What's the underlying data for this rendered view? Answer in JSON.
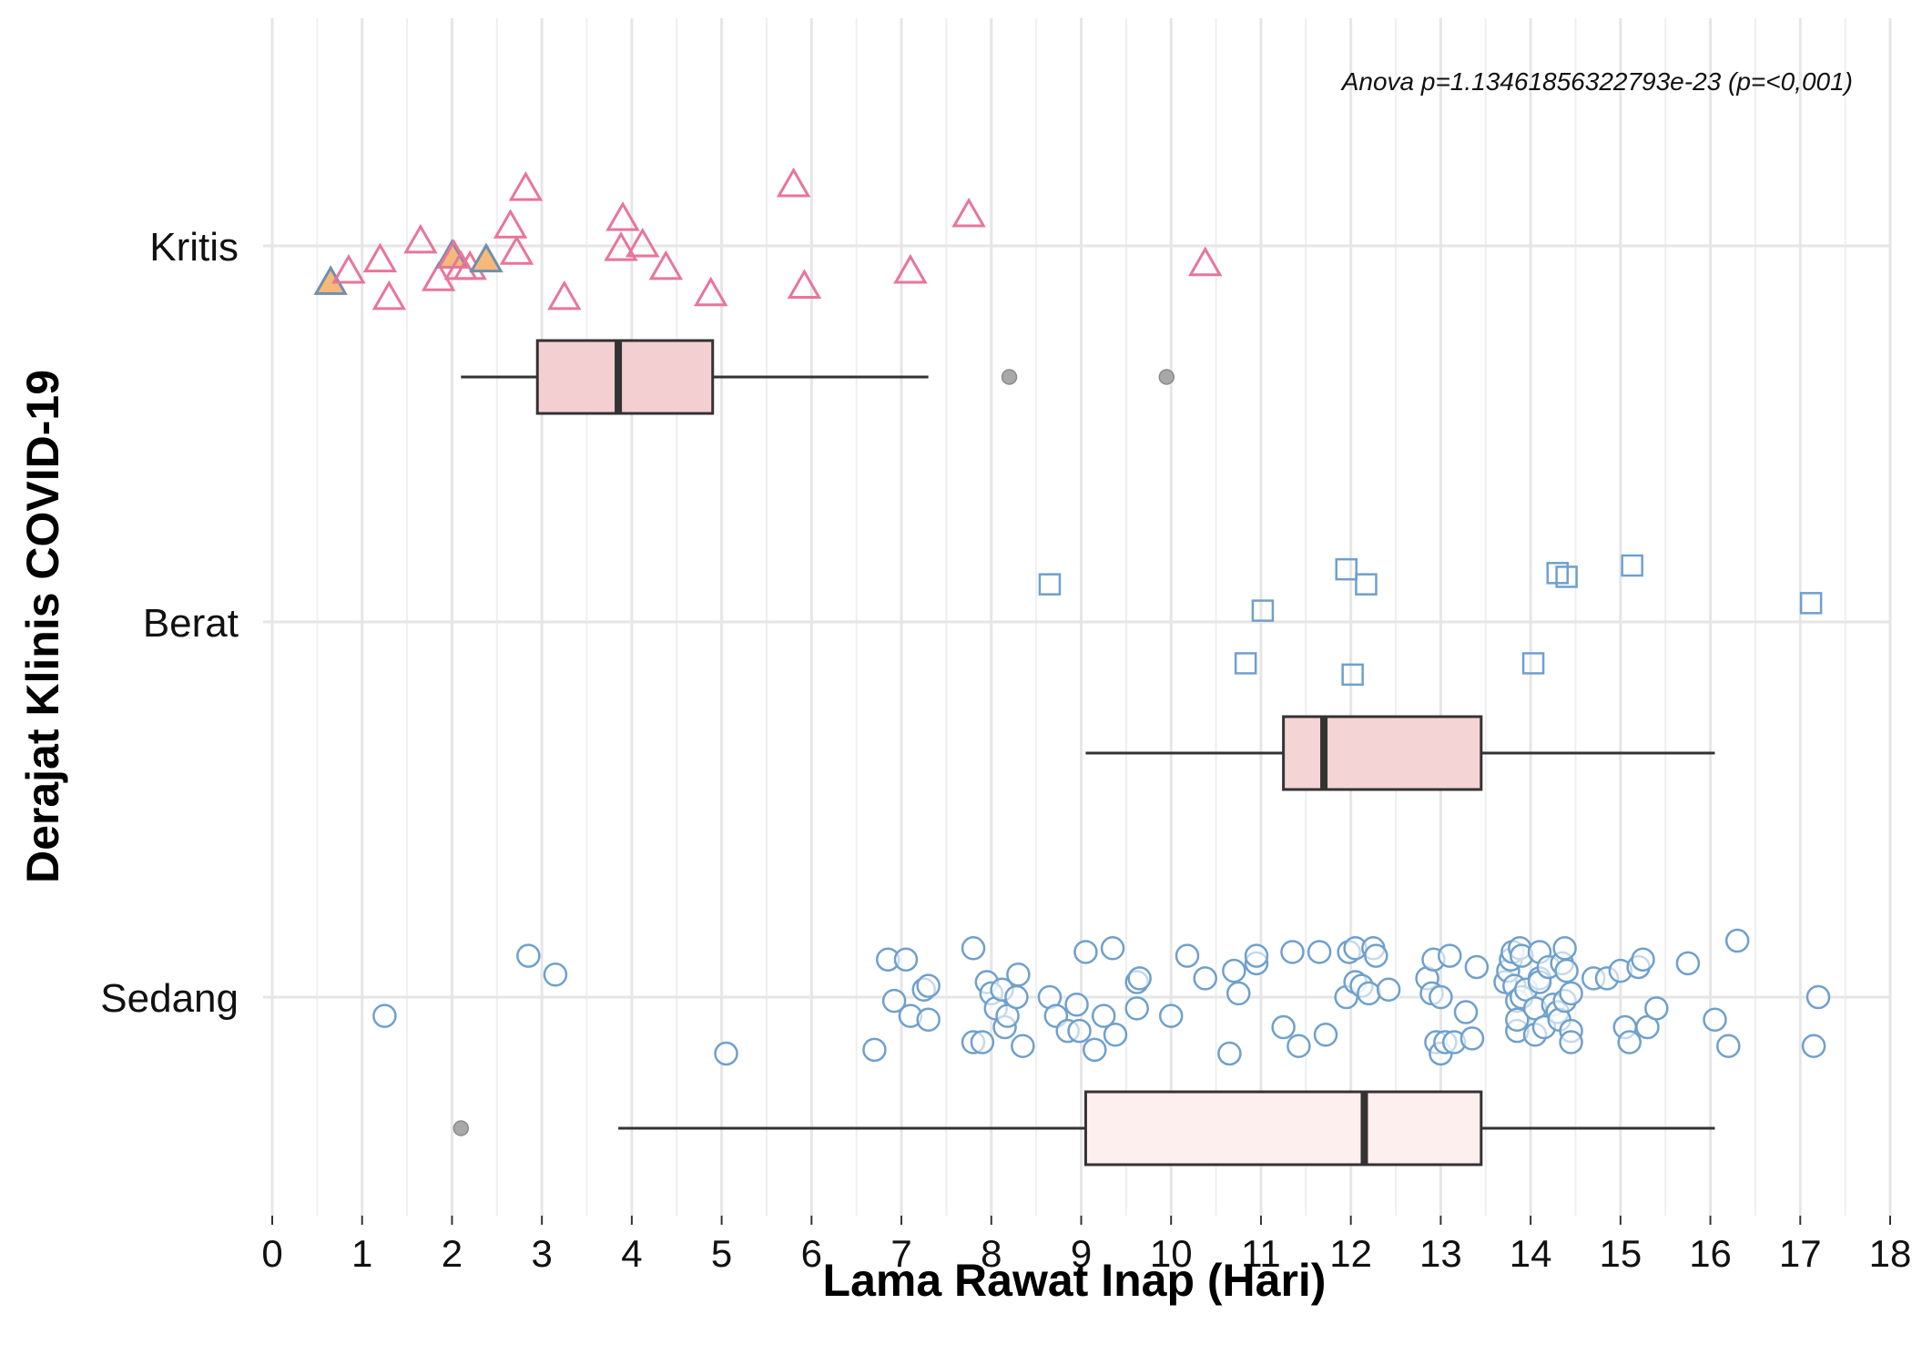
{
  "chart_data": {
    "type": "boxplot-jitter",
    "xlabel": "Lama Rawat Inap (Hari)",
    "ylabel": "Derajat Klinis COVID-19",
    "annotation": "Anova p=1.13461856322793e-23 (p=<0,001)",
    "xlim": [
      0,
      18
    ],
    "x_ticks": [
      0,
      1,
      2,
      3,
      4,
      5,
      6,
      7,
      8,
      9,
      10,
      11,
      12,
      13,
      14,
      15,
      16,
      17,
      18
    ],
    "categories": [
      "Kritis",
      "Berat",
      "Sedang"
    ],
    "grid": true,
    "colors": {
      "kritis_points": "#e8759a",
      "kritis_highlight_fill": "#f6b97a",
      "kritis_highlight_stroke": "#6f8fb0",
      "berat_points": "#6fa0cc",
      "sedang_points": "#6fa0cc",
      "box_stroke": "#333333",
      "box_fill_kritis": "#f4cfd1",
      "box_fill_berat": "#f4d4d4",
      "box_fill_sedang": "#fdefee",
      "outlier": "#a8a8a8",
      "grid_major": "#e6e6e6",
      "grid_minor": "#efefef"
    },
    "series": [
      {
        "category": "Kritis",
        "marker": "triangle",
        "boxplot": {
          "whisker_low": 2.1,
          "q1": 2.95,
          "median": 3.85,
          "q3": 4.9,
          "whisker_high": 7.3,
          "outliers": [
            8.2,
            9.95
          ]
        },
        "points": [
          [
            0.65,
            -0.1,
            true
          ],
          [
            0.85,
            -0.07,
            false
          ],
          [
            1.2,
            -0.04,
            false
          ],
          [
            1.3,
            -0.14,
            false
          ],
          [
            1.65,
            0.01,
            false
          ],
          [
            1.85,
            -0.09,
            false
          ],
          [
            2.0,
            -0.03,
            true
          ],
          [
            2.02,
            -0.03,
            false
          ],
          [
            2.1,
            -0.06,
            false
          ],
          [
            2.2,
            -0.06,
            false
          ],
          [
            2.38,
            -0.04,
            true
          ],
          [
            2.65,
            0.05,
            false
          ],
          [
            2.72,
            -0.02,
            false
          ],
          [
            2.82,
            0.15,
            false
          ],
          [
            3.25,
            -0.14,
            false
          ],
          [
            3.88,
            -0.01,
            false
          ],
          [
            3.9,
            0.07,
            false
          ],
          [
            4.12,
            0.0,
            false
          ],
          [
            4.38,
            -0.06,
            false
          ],
          [
            4.88,
            -0.13,
            false
          ],
          [
            5.8,
            0.16,
            false
          ],
          [
            5.92,
            -0.11,
            false
          ],
          [
            7.1,
            -0.07,
            false
          ],
          [
            7.75,
            0.08,
            false
          ],
          [
            10.38,
            -0.05,
            false
          ]
        ]
      },
      {
        "category": "Berat",
        "marker": "square",
        "boxplot": {
          "whisker_low": 9.05,
          "q1": 11.25,
          "median": 11.7,
          "q3": 13.45,
          "whisker_high": 16.05,
          "outliers": []
        },
        "points": [
          [
            8.65,
            0.1,
            false
          ],
          [
            10.83,
            -0.11,
            false
          ],
          [
            11.02,
            0.03,
            false
          ],
          [
            11.95,
            0.14,
            false
          ],
          [
            12.02,
            -0.14,
            false
          ],
          [
            12.17,
            0.1,
            false
          ],
          [
            14.03,
            -0.11,
            false
          ],
          [
            14.3,
            0.13,
            false
          ],
          [
            14.4,
            0.12,
            false
          ],
          [
            15.13,
            0.15,
            false
          ],
          [
            17.12,
            0.05,
            false
          ]
        ]
      },
      {
        "category": "Sedang",
        "marker": "circle",
        "boxplot": {
          "whisker_low": 3.85,
          "q1": 9.05,
          "median": 12.15,
          "q3": 13.45,
          "whisker_high": 16.05,
          "outliers": [
            2.1
          ]
        },
        "points": [
          [
            1.25,
            -0.05,
            false
          ],
          [
            2.85,
            0.11,
            false
          ],
          [
            3.15,
            0.06,
            false
          ],
          [
            5.05,
            -0.15,
            false
          ],
          [
            6.7,
            -0.14,
            false
          ],
          [
            6.85,
            0.1,
            false
          ],
          [
            6.92,
            -0.01,
            false
          ],
          [
            7.05,
            0.1,
            false
          ],
          [
            7.1,
            -0.05,
            false
          ],
          [
            7.25,
            0.02,
            false
          ],
          [
            7.3,
            0.03,
            false
          ],
          [
            7.3,
            -0.06,
            false
          ],
          [
            7.8,
            0.13,
            false
          ],
          [
            7.8,
            -0.12,
            false
          ],
          [
            7.9,
            -0.12,
            false
          ],
          [
            7.95,
            0.04,
            false
          ],
          [
            8.0,
            0.01,
            false
          ],
          [
            8.05,
            -0.03,
            false
          ],
          [
            8.12,
            0.02,
            false
          ],
          [
            8.15,
            -0.08,
            false
          ],
          [
            8.18,
            -0.05,
            false
          ],
          [
            8.28,
            0.0,
            false
          ],
          [
            8.3,
            0.06,
            false
          ],
          [
            8.35,
            -0.13,
            false
          ],
          [
            8.65,
            0.0,
            false
          ],
          [
            8.72,
            -0.05,
            false
          ],
          [
            8.85,
            -0.09,
            false
          ],
          [
            8.95,
            -0.02,
            false
          ],
          [
            8.98,
            -0.09,
            false
          ],
          [
            9.05,
            0.12,
            false
          ],
          [
            9.15,
            -0.14,
            false
          ],
          [
            9.25,
            -0.05,
            false
          ],
          [
            9.35,
            0.13,
            false
          ],
          [
            9.38,
            -0.1,
            false
          ],
          [
            9.62,
            0.04,
            false
          ],
          [
            9.62,
            -0.03,
            false
          ],
          [
            9.65,
            0.05,
            false
          ],
          [
            10.0,
            -0.05,
            false
          ],
          [
            10.18,
            0.11,
            false
          ],
          [
            10.38,
            0.05,
            false
          ],
          [
            10.65,
            -0.15,
            false
          ],
          [
            10.7,
            0.07,
            false
          ],
          [
            10.75,
            0.01,
            false
          ],
          [
            10.95,
            0.09,
            false
          ],
          [
            10.95,
            0.11,
            false
          ],
          [
            11.25,
            -0.08,
            false
          ],
          [
            11.35,
            0.12,
            false
          ],
          [
            11.42,
            -0.13,
            false
          ],
          [
            11.65,
            0.12,
            false
          ],
          [
            11.72,
            -0.1,
            false
          ],
          [
            11.95,
            0.0,
            false
          ],
          [
            11.98,
            0.12,
            false
          ],
          [
            12.05,
            0.13,
            false
          ],
          [
            12.05,
            0.04,
            false
          ],
          [
            12.12,
            0.03,
            false
          ],
          [
            12.2,
            0.01,
            false
          ],
          [
            12.25,
            0.13,
            false
          ],
          [
            12.28,
            0.11,
            false
          ],
          [
            12.42,
            0.02,
            false
          ],
          [
            12.85,
            0.05,
            false
          ],
          [
            12.9,
            0.01,
            false
          ],
          [
            12.92,
            0.1,
            false
          ],
          [
            12.95,
            -0.12,
            false
          ],
          [
            13.0,
            0.0,
            false
          ],
          [
            13.0,
            -0.15,
            false
          ],
          [
            13.05,
            -0.12,
            false
          ],
          [
            13.1,
            0.11,
            false
          ],
          [
            13.15,
            -0.12,
            false
          ],
          [
            13.28,
            -0.04,
            false
          ],
          [
            13.35,
            -0.11,
            false
          ],
          [
            13.4,
            0.08,
            false
          ],
          [
            13.72,
            0.04,
            false
          ],
          [
            13.75,
            0.07,
            false
          ],
          [
            13.78,
            0.1,
            false
          ],
          [
            13.8,
            0.12,
            false
          ],
          [
            13.82,
            0.03,
            false
          ],
          [
            13.85,
            -0.01,
            false
          ],
          [
            13.85,
            -0.09,
            false
          ],
          [
            13.85,
            -0.06,
            false
          ],
          [
            13.88,
            0.13,
            false
          ],
          [
            13.9,
            0.11,
            false
          ],
          [
            13.9,
            0.0,
            false
          ],
          [
            13.95,
            0.02,
            false
          ],
          [
            14.05,
            -0.03,
            false
          ],
          [
            14.05,
            -0.1,
            false
          ],
          [
            14.1,
            0.12,
            false
          ],
          [
            14.1,
            0.05,
            false
          ],
          [
            14.1,
            0.04,
            false
          ],
          [
            14.15,
            -0.08,
            false
          ],
          [
            14.2,
            0.08,
            false
          ],
          [
            14.25,
            -0.02,
            false
          ],
          [
            14.3,
            -0.04,
            false
          ],
          [
            14.32,
            -0.06,
            false
          ],
          [
            14.35,
            0.09,
            false
          ],
          [
            14.38,
            0.13,
            false
          ],
          [
            14.38,
            -0.01,
            false
          ],
          [
            14.4,
            0.07,
            false
          ],
          [
            14.45,
            -0.09,
            false
          ],
          [
            14.45,
            -0.12,
            false
          ],
          [
            14.45,
            0.01,
            false
          ],
          [
            14.7,
            0.05,
            false
          ],
          [
            14.85,
            0.05,
            false
          ],
          [
            15.0,
            0.07,
            false
          ],
          [
            15.05,
            -0.08,
            false
          ],
          [
            15.1,
            -0.12,
            false
          ],
          [
            15.2,
            0.08,
            false
          ],
          [
            15.25,
            0.1,
            false
          ],
          [
            15.3,
            -0.08,
            false
          ],
          [
            15.4,
            -0.03,
            false
          ],
          [
            15.75,
            0.09,
            false
          ],
          [
            16.05,
            -0.06,
            false
          ],
          [
            16.2,
            -0.13,
            false
          ],
          [
            16.3,
            0.15,
            false
          ],
          [
            17.15,
            -0.13,
            false
          ],
          [
            17.2,
            0.0,
            false
          ]
        ]
      }
    ]
  }
}
